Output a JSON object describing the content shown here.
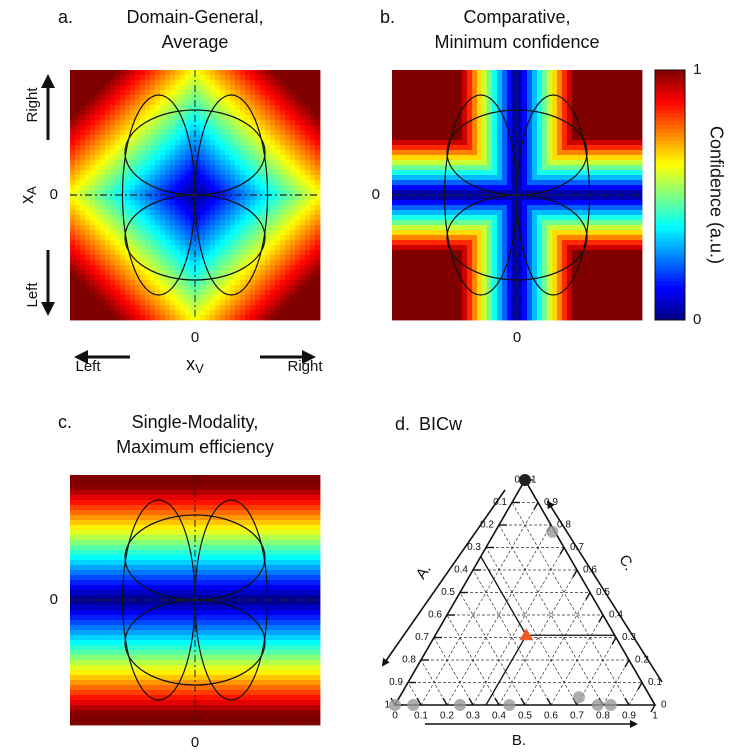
{
  "chart_data": [
    {
      "type": "heatmap",
      "panel_label": "a.",
      "title": [
        "Domain-General,",
        "Average"
      ],
      "xlabel": {
        "text": "x",
        "sub": "V"
      },
      "ylabel": {
        "text": "x",
        "sub": "A"
      },
      "x_direction_labels": [
        "Left",
        "Right"
      ],
      "y_direction_labels": [
        "Left",
        "Right"
      ],
      "xlim": [
        -1,
        1
      ],
      "ylim": [
        -1,
        1
      ],
      "xticks": [
        0
      ],
      "yticks": [
        0
      ]
    },
    {
      "type": "heatmap",
      "panel_label": "b.",
      "title": [
        "Comparative,",
        "Minimum confidence"
      ],
      "xlim": [
        -1,
        1
      ],
      "ylim": [
        -1,
        1
      ],
      "xticks": [
        0
      ],
      "yticks": [
        0
      ],
      "colorbar": {
        "label": "Confidence (a.u.)",
        "lim": [
          0,
          1
        ],
        "ticks": [
          0,
          1
        ]
      }
    },
    {
      "type": "heatmap",
      "panel_label": "c.",
      "title": [
        "Single-Modality,",
        "Maximum efficiency"
      ],
      "xlim": [
        -1,
        1
      ],
      "ylim": [
        -1,
        1
      ],
      "xticks": [
        0
      ],
      "yticks": [
        0
      ]
    },
    {
      "type": "ternary",
      "panel_label": "d.",
      "title": "BICw",
      "axis_labels": [
        "A.",
        "B.",
        "C."
      ],
      "aticks": [
        0,
        0.1,
        0.2,
        0.3,
        0.4,
        0.5,
        0.6,
        0.7,
        0.8,
        0.9,
        1
      ],
      "bticks": [
        0,
        0.1,
        0.2,
        0.3,
        0.4,
        0.5,
        0.6,
        0.7,
        0.8,
        0.9,
        1
      ],
      "cticks": [
        0,
        0.1,
        0.2,
        0.3,
        0.4,
        0.5,
        0.6,
        0.7,
        0.8,
        0.9,
        1
      ],
      "grid": true,
      "series": [
        {
          "color": "#999999",
          "a": [
            1,
            0.93,
            0.75,
            0.56,
            0.275,
            0.22,
            0.17,
            0.01
          ],
          "b": [
            0,
            0.07,
            0.25,
            0.44,
            0.69,
            0.78,
            0.83,
            0.22
          ],
          "c": [
            0,
            0,
            0,
            0,
            0.035,
            0,
            0,
            0.77
          ]
        },
        {
          "color": "#222222",
          "a": [
            0
          ],
          "b": [
            0
          ],
          "c": [
            1
          ]
        },
        {
          "color": "#f05a28",
          "a": [
            0.34
          ],
          "b": [
            0.35
          ],
          "c": [
            0.31
          ]
        }
      ]
    }
  ]
}
